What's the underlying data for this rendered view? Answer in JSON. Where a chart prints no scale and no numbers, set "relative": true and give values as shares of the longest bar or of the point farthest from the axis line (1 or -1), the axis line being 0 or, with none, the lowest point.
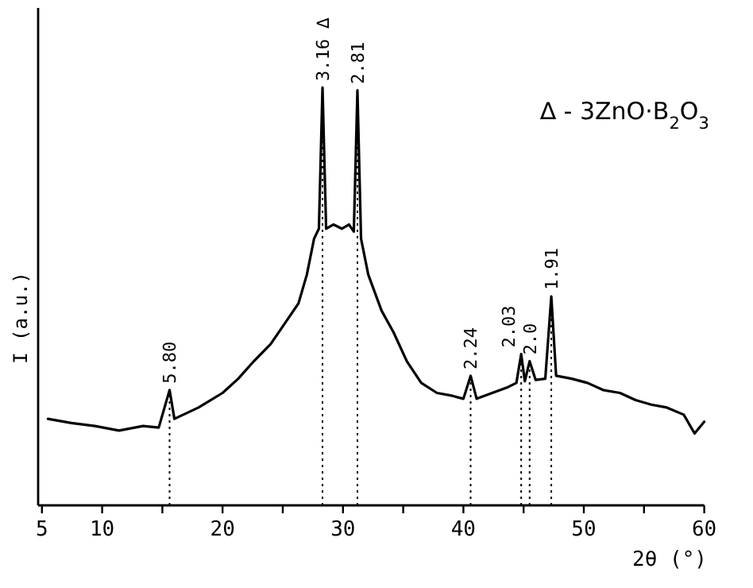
{
  "chart_data": {
    "type": "line",
    "relative": true,
    "xlabel": "2θ (°)",
    "ylabel": "I (a.u.)",
    "xlim": [
      5,
      60
    ],
    "xticks": [
      5,
      10,
      {
        "value": 15,
        "label": null
      },
      20,
      {
        "value": 25,
        "label": null
      },
      30,
      {
        "value": 35,
        "label": null
      },
      40,
      {
        "value": 45,
        "label": null
      },
      50,
      {
        "value": 55,
        "label": null
      },
      60
    ],
    "series": [
      {
        "color": "#000000",
        "x": [
          5.5,
          7.45,
          9.4,
          11.4,
          13.4,
          14.7,
          15.6,
          16.0,
          18.0,
          20.0,
          21.3,
          22.6,
          24.0,
          25.3,
          26.3,
          27.0,
          27.6,
          28.0,
          28.3,
          28.6,
          29.2,
          29.9,
          30.5,
          30.9,
          31.2,
          31.5,
          32.1,
          33.2,
          34.2,
          35.3,
          36.5,
          37.8,
          39.1,
          40.0,
          40.6,
          41.1,
          42.4,
          43.7,
          44.4,
          44.8,
          45.1,
          45.5,
          46.0,
          46.8,
          47.3,
          47.7,
          49.0,
          50.3,
          51.6,
          53.0,
          54.3,
          55.6,
          56.9,
          58.3,
          59.2,
          60.0
        ],
        "values": [
          0.207,
          0.197,
          0.19,
          0.179,
          0.19,
          0.186,
          0.276,
          0.207,
          0.234,
          0.269,
          0.303,
          0.345,
          0.386,
          0.441,
          0.483,
          0.552,
          0.638,
          0.662,
          1.0,
          0.662,
          0.672,
          0.662,
          0.672,
          0.655,
          0.993,
          0.638,
          0.552,
          0.466,
          0.414,
          0.345,
          0.293,
          0.269,
          0.262,
          0.255,
          0.31,
          0.255,
          0.269,
          0.283,
          0.293,
          0.362,
          0.297,
          0.345,
          0.3,
          0.303,
          0.5,
          0.31,
          0.303,
          0.293,
          0.276,
          0.269,
          0.252,
          0.241,
          0.234,
          0.217,
          0.172,
          0.2
        ]
      }
    ],
    "ref_lines": [
      {
        "axis": "x",
        "value": 15.6,
        "line_style": "dotted"
      },
      {
        "axis": "x",
        "value": 28.3,
        "line_style": "dotted"
      },
      {
        "axis": "x",
        "value": 31.2,
        "line_style": "dotted"
      },
      {
        "axis": "x",
        "value": 40.6,
        "line_style": "dotted"
      },
      {
        "axis": "x",
        "value": 44.8,
        "line_style": "dotted"
      },
      {
        "axis": "x",
        "value": 45.5,
        "line_style": "dotted"
      },
      {
        "axis": "x",
        "value": 47.3,
        "line_style": "dotted"
      }
    ],
    "annotations": [
      {
        "text": "5.80",
        "x": 15.6,
        "y": 0.276
      },
      {
        "text": "3.16 ∆",
        "x": 28.3,
        "y": 1.0
      },
      {
        "text": "2.81",
        "x": 31.2,
        "y": 0.993
      },
      {
        "text": "2.24",
        "x": 40.6,
        "y": 0.31
      },
      {
        "text": "2.03",
        "x": 44.8,
        "y": 0.362
      },
      {
        "text": "2.0",
        "x": 45.5,
        "y": 0.345
      },
      {
        "text": "1.91",
        "x": 47.3,
        "y": 0.5
      },
      "∆ - 3ZnO·B$_{2}$O$_{3}$"
    ],
    "line_style": "solid",
    "marker": "none"
  }
}
